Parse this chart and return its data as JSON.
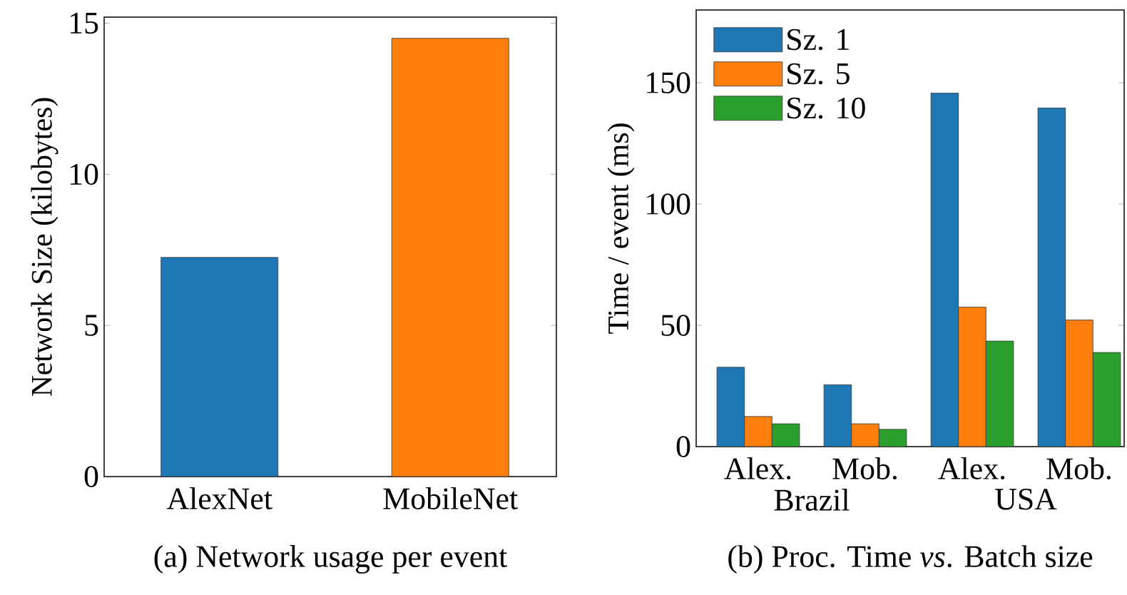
{
  "chart_data": [
    {
      "type": "bar",
      "title": "(a) Network usage per event",
      "ylabel": "Network Size (kilobytes)",
      "categories": [
        "AlexNet",
        "MobileNet"
      ],
      "values": [
        7.25,
        14.5
      ],
      "colors": [
        "#1f77b4",
        "#ff7f0e"
      ],
      "ylim": [
        0,
        15.2
      ],
      "yticks": [
        0,
        5,
        10,
        15
      ],
      "grid": false,
      "legend": false
    },
    {
      "type": "bar",
      "title": "(b) Proc. Time *vs*. Batch size",
      "ylabel": "Time / event (ms)",
      "categories": [
        "Alex.",
        "Mob.",
        "Alex.",
        "Mob."
      ],
      "annotations": [
        "Brazil",
        "USA"
      ],
      "series": [
        {
          "name": "Sz. 1",
          "color": "#1f77b4",
          "values": [
            32.7,
            25.5,
            145.7,
            139.6
          ]
        },
        {
          "name": "Sz. 5",
          "color": "#ff7f0e",
          "values": [
            12.4,
            9.4,
            57.5,
            52.2
          ]
        },
        {
          "name": "Sz. 10",
          "color": "#2ca02c",
          "values": [
            9.4,
            7.1,
            43.5,
            38.8
          ]
        }
      ],
      "ylim": [
        0,
        180
      ],
      "yticks": [
        0,
        50,
        100,
        150
      ],
      "grid": false,
      "legend": "top left"
    }
  ]
}
